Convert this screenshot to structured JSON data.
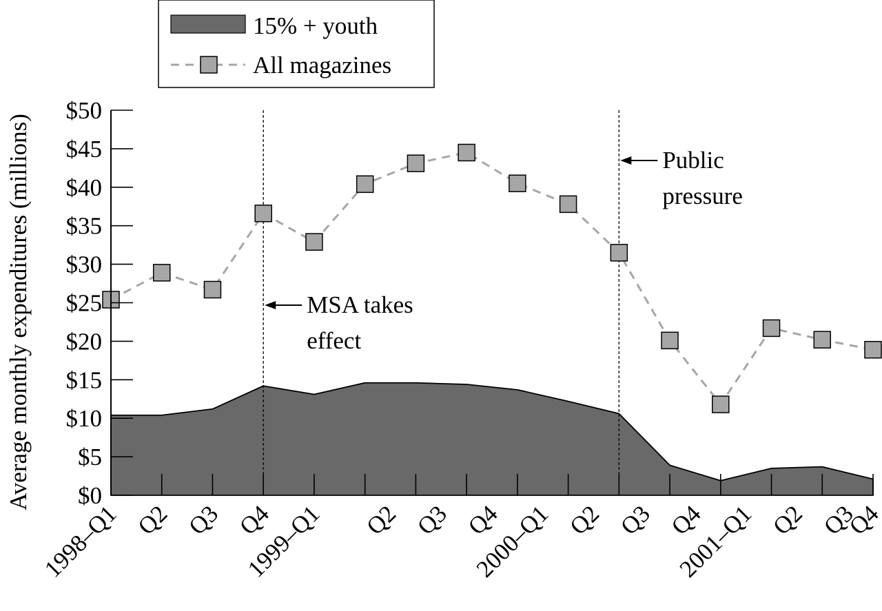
{
  "chart_data": {
    "type": "area",
    "ylabel": "Average monthly expenditures (millions)",
    "xlabel": "",
    "ylim": [
      0,
      50
    ],
    "yticks": [
      {
        "value": 0,
        "label": "$0"
      },
      {
        "value": 5,
        "label": "$5"
      },
      {
        "value": 10,
        "label": "$10"
      },
      {
        "value": 15,
        "label": "$15"
      },
      {
        "value": 20,
        "label": "$20"
      },
      {
        "value": 25,
        "label": "$25"
      },
      {
        "value": 30,
        "label": "$30"
      },
      {
        "value": 35,
        "label": "$35"
      },
      {
        "value": 40,
        "label": "$40"
      },
      {
        "value": 45,
        "label": "$45"
      },
      {
        "value": 50,
        "label": "$50"
      }
    ],
    "categories": [
      "1998–Q1",
      "Q2",
      "Q3",
      "Q4",
      "1999–Q1",
      "Q2",
      "Q3",
      "Q4",
      "2000–Q1",
      "Q2",
      "Q3",
      "Q4",
      "2001–Q1",
      "Q2",
      "Q3",
      "Q4"
    ],
    "x_label_slots": [
      {
        "text": "1998–Q1",
        "index": 0
      },
      {
        "text": "Q2",
        "index": 1
      },
      {
        "text": "Q3",
        "index": 2
      },
      {
        "text": "Q4",
        "index": 3
      },
      {
        "text": "1999–Q1",
        "index": 4
      },
      {
        "text": "Q2",
        "index": 5.5
      },
      {
        "text": "Q3",
        "index": 6.5
      },
      {
        "text": "Q4",
        "index": 7.5
      },
      {
        "text": "2000–Q1",
        "index": 8.5
      },
      {
        "text": "Q2",
        "index": 9.5
      },
      {
        "text": "Q3",
        "index": 10.5
      },
      {
        "text": "Q4",
        "index": 11.5
      },
      {
        "text": "2001–Q1",
        "index": 12.5
      },
      {
        "text": "Q2",
        "index": 13.5
      },
      {
        "text": "Q3",
        "index": 14.5
      },
      {
        "text": "Q4",
        "index": 15
      }
    ],
    "tick_marks": [
      1,
      2,
      3,
      4,
      5,
      6,
      7,
      8,
      9,
      10,
      11,
      12,
      13,
      14,
      15
    ],
    "series": [
      {
        "name": "15% + youth",
        "type": "area",
        "color": "#696969",
        "x": [
          0,
          1,
          2,
          3,
          4,
          5,
          6,
          7,
          8,
          9,
          10,
          11,
          12,
          13,
          14,
          15
        ],
        "values": [
          10.4,
          10.4,
          11.2,
          14.2,
          13.1,
          14.6,
          14.6,
          14.4,
          13.7,
          12.2,
          10.6,
          3.9,
          1.9,
          3.5,
          3.7,
          2.1
        ]
      },
      {
        "name": "All magazines",
        "type": "line",
        "style": "dashed",
        "color": "#a6a6a6",
        "x": [
          0,
          1,
          2,
          3,
          4,
          5,
          6,
          7,
          8,
          9,
          10,
          11,
          12,
          13,
          14,
          15
        ],
        "values": [
          25.4,
          28.9,
          26.7,
          36.6,
          32.9,
          40.4,
          43.1,
          44.5,
          40.5,
          37.8,
          31.5,
          20.1,
          11.8,
          21.7,
          20.2,
          18.9
        ]
      }
    ],
    "annotations": [
      {
        "at_index": 3,
        "lines": [
          "MSA takes",
          "effect"
        ]
      },
      {
        "at_index": 10,
        "lines": [
          "Public",
          "pressure"
        ]
      }
    ],
    "legend": {
      "placement": "top-left",
      "entries": [
        "15% + youth",
        "All magazines"
      ]
    },
    "grid": false
  }
}
